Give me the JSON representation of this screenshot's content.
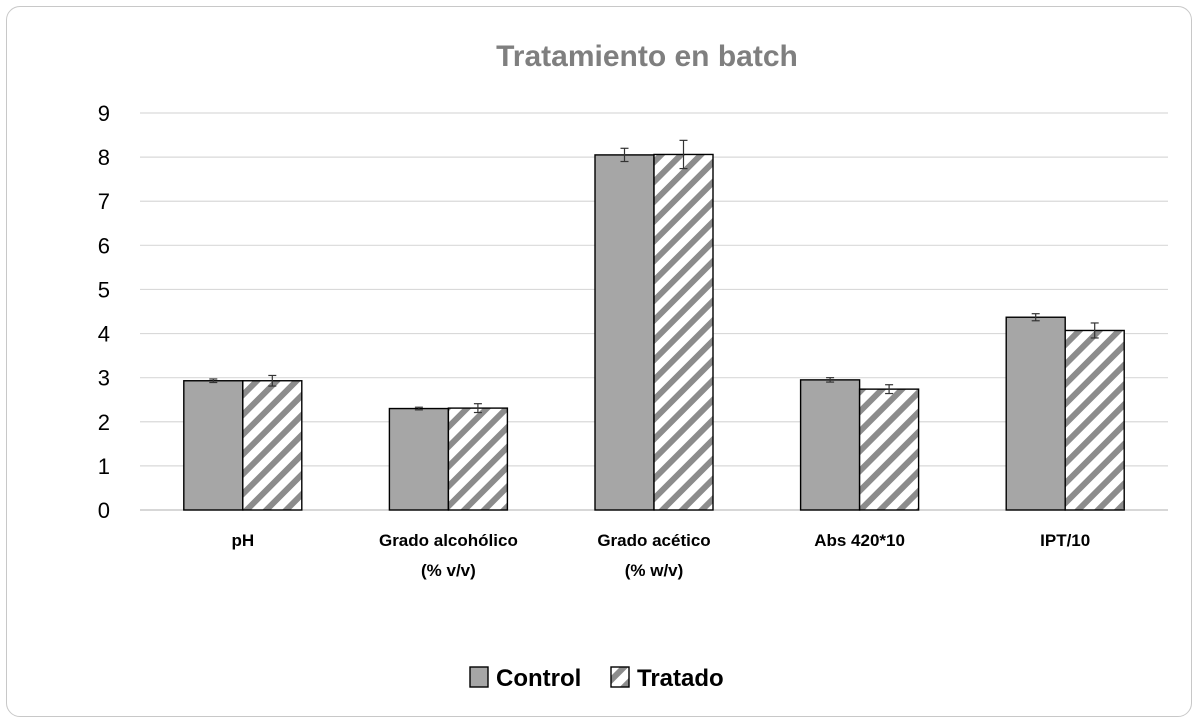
{
  "chart_data": {
    "type": "bar",
    "title": "Tratamiento en batch",
    "categories": [
      [
        "pH"
      ],
      [
        "Grado alcohólico",
        "(% v/v)"
      ],
      [
        "Grado acético",
        "(% w/v)"
      ],
      [
        "Abs 420*10"
      ],
      [
        "IPT/10"
      ]
    ],
    "series": [
      {
        "name": "Control",
        "values": [
          2.93,
          2.3,
          8.05,
          2.95,
          4.37
        ],
        "errors": [
          0.04,
          0.03,
          0.15,
          0.05,
          0.08
        ],
        "color": "#a6a6a6",
        "pattern": "solid"
      },
      {
        "name": "Tratado",
        "values": [
          2.93,
          2.31,
          8.06,
          2.74,
          4.07
        ],
        "errors": [
          0.12,
          0.1,
          0.32,
          0.1,
          0.17
        ],
        "color": "#ffffff",
        "pattern": "diagonal-stripes"
      }
    ],
    "ylim": [
      0,
      9
    ],
    "yticks": [
      0,
      1,
      2,
      3,
      4,
      5,
      6,
      7,
      8,
      9
    ],
    "grid": true,
    "legend_position": "bottom",
    "colors": {
      "control_fill": "#a6a6a6",
      "hatch": "#8c8c8c",
      "grid": "#d9d9d9",
      "title": "#7f7f7f"
    }
  }
}
